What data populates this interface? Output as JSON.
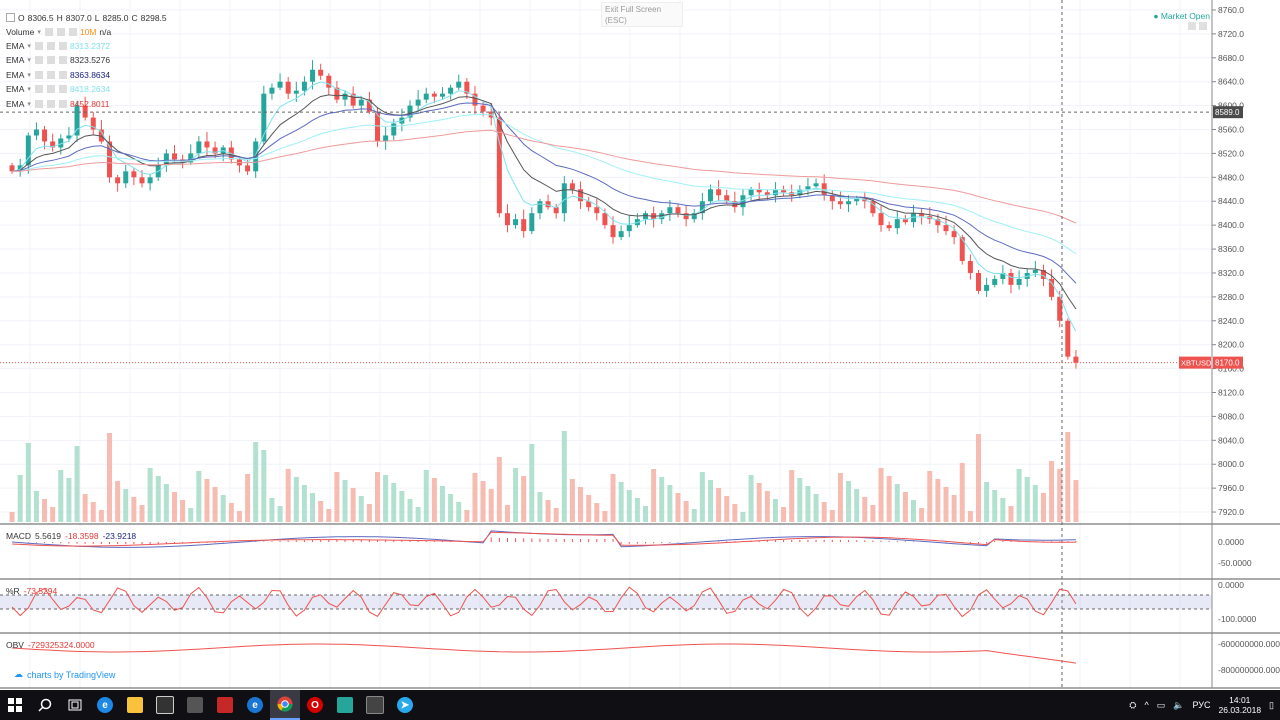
{
  "ohlc": {
    "o_label": "O",
    "o": "8306.5",
    "h_label": "H",
    "h": "8307.0",
    "l_label": "L",
    "l": "8285.0",
    "c_label": "C",
    "c": "8298.5"
  },
  "volume_legend": {
    "label": "Volume",
    "ma": "10M",
    "value": "n/a",
    "ma_color": "#f7931a"
  },
  "ema_legend": [
    {
      "label": "EMA",
      "value": "8313.2372",
      "color": "#7fe3f0"
    },
    {
      "label": "EMA",
      "value": "8323.5276",
      "color": "#333333"
    },
    {
      "label": "EMA",
      "value": "8363.8634",
      "color": "#1a237e"
    },
    {
      "label": "EMA",
      "value": "8418.2634",
      "color": "#7fe3f0"
    },
    {
      "label": "EMA",
      "value": "8452.8011",
      "color": "#e53935"
    }
  ],
  "exit_fullscreen": {
    "line1": "Exit Full Screen",
    "line2": "(ESC)"
  },
  "market_status": "● Market Open",
  "price_axis": [
    "8760.0",
    "8720.0",
    "8680.0",
    "8640.0",
    "8600.0",
    "8560.0",
    "8520.0",
    "8480.0",
    "8440.0",
    "8400.0",
    "8360.0",
    "8320.0",
    "8280.0",
    "8240.0",
    "8200.0",
    "8160.0",
    "8120.0",
    "8080.0",
    "8040.0",
    "8000.0",
    "7960.0",
    "7920.0"
  ],
  "crosshair_price": "8589.0",
  "last_price": {
    "symbol": "XBTUSD",
    "value": "8170.0"
  },
  "macd": {
    "label": "MACD",
    "v1": "5.5619",
    "v2": "-18.3598",
    "v3": "-23.9218",
    "axis": [
      "0.0000",
      "-50.0000"
    ]
  },
  "wr": {
    "label": "%R",
    "value": "-73.5294",
    "axis": [
      "0.0000",
      "-100.0000"
    ]
  },
  "obv": {
    "label": "OBV",
    "value": "-729325324.0000",
    "axis": [
      "-600000000.0000",
      "-800000000.0000"
    ]
  },
  "branding": "charts by TradingView",
  "taskbar": {
    "apps": [
      "start-icon",
      "search-icon",
      "task-view-icon",
      "edge-icon",
      "file-explorer-icon",
      "store-icon",
      "media-icon",
      "paint-icon",
      "ie-icon",
      "chrome-icon",
      "opera-icon",
      "app-icon",
      "calculator-icon",
      "telegram-icon"
    ],
    "language": "РУС",
    "time": "14:01",
    "date": "26.03.2018"
  },
  "colors": {
    "up": "#26a69a",
    "down": "#ef5350",
    "grid": "#f0f3fa"
  },
  "chart_data": {
    "type": "candlestick",
    "symbol": "XBTUSD",
    "ylim": [
      7900,
      8770
    ],
    "closes": [
      8490,
      8500,
      8550,
      8560,
      8540,
      8530,
      8545,
      8550,
      8600,
      8580,
      8560,
      8540,
      8480,
      8470,
      8490,
      8480,
      8470,
      8480,
      8500,
      8520,
      8510,
      8505,
      8520,
      8540,
      8530,
      8520,
      8530,
      8510,
      8500,
      8490,
      8540,
      8620,
      8630,
      8640,
      8620,
      8625,
      8640,
      8660,
      8650,
      8630,
      8610,
      8620,
      8600,
      8610,
      8590,
      8540,
      8550,
      8570,
      8580,
      8600,
      8610,
      8620,
      8615,
      8620,
      8630,
      8640,
      8620,
      8600,
      8590,
      8580,
      8420,
      8400,
      8410,
      8390,
      8420,
      8440,
      8430,
      8420,
      8470,
      8460,
      8440,
      8430,
      8420,
      8400,
      8380,
      8390,
      8400,
      8410,
      8420,
      8410,
      8420,
      8430,
      8420,
      8410,
      8420,
      8440,
      8460,
      8450,
      8440,
      8430,
      8450,
      8460,
      8455,
      8450,
      8460,
      8455,
      8450,
      8460,
      8465,
      8470,
      8450,
      8440,
      8435,
      8440,
      8445,
      8440,
      8420,
      8400,
      8395,
      8410,
      8405,
      8420,
      8415,
      8410,
      8400,
      8390,
      8380,
      8340,
      8320,
      8290,
      8300,
      8310,
      8320,
      8300,
      8310,
      8320,
      8325,
      8310,
      8280,
      8240,
      8180,
      8170
    ]
  }
}
